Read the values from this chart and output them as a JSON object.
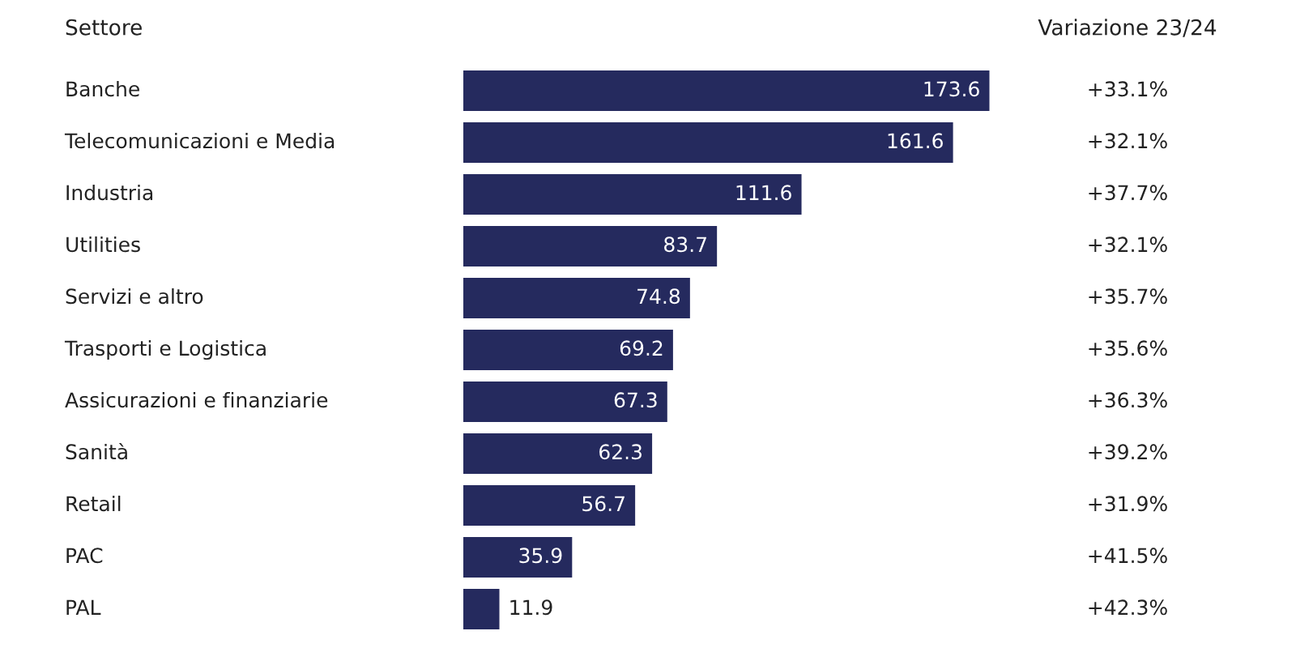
{
  "chart_data": {
    "type": "bar",
    "orientation": "horizontal",
    "ylabel": "Settore",
    "categories": [
      "Banche",
      "Telecomunicazioni e Media",
      "Industria",
      "Utilities",
      "Servizi e altro",
      "Trasporti e Logistica",
      "Assicurazioni e finanziarie",
      "Sanità",
      "Retail",
      "PAC",
      "PAL"
    ],
    "values": [
      173.6,
      161.6,
      111.6,
      83.7,
      74.8,
      69.2,
      67.3,
      62.3,
      56.7,
      35.9,
      11.9
    ],
    "color": "#252a5e",
    "data_labels": true,
    "annotations": [
      "Variazione 23/24",
      "+33.1%",
      "+32.1%",
      "+37.7%",
      "+32.1%",
      "+35.7%",
      "+35.6%",
      "+36.3%",
      "+39.2%",
      "+31.9%",
      "+41.5%",
      "+42.3%"
    ]
  }
}
